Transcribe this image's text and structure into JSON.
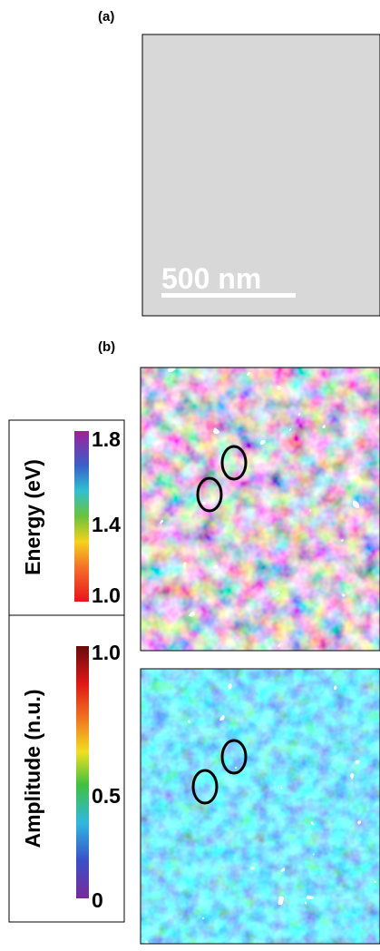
{
  "panel_a": {
    "label": "(a)",
    "scale_bar": "500 nm"
  },
  "panel_b": {
    "label": "(b)",
    "energy_colorbar": {
      "title": "Energy (eV)",
      "ticks": [
        "1.8",
        "1.4",
        "1.0"
      ]
    },
    "amplitude_colorbar": {
      "title": "Amplitude (n.u.)",
      "ticks": [
        "1.0",
        "0.5",
        "0"
      ]
    }
  }
}
